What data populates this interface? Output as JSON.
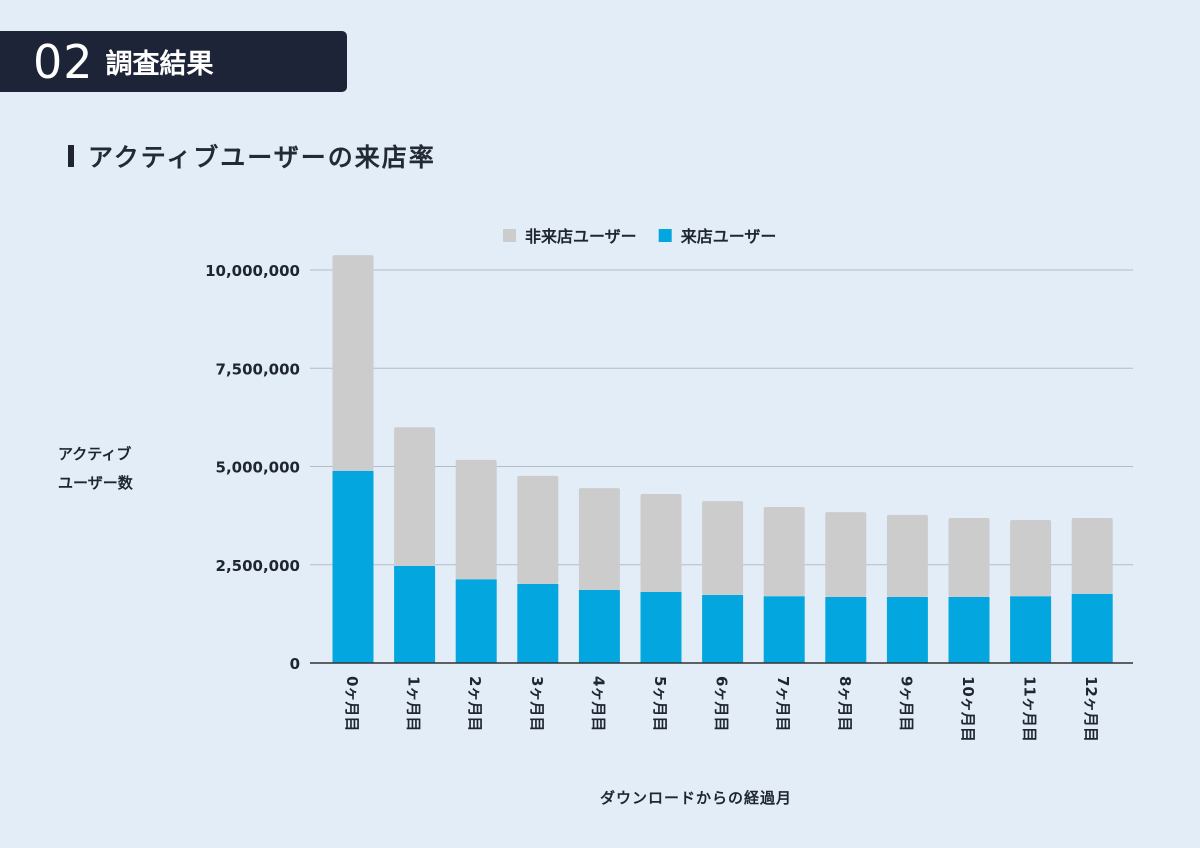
{
  "header": {
    "number": "02",
    "title": "調査結果"
  },
  "section_title": "アクティブユーザーの来店率",
  "chart_data": {
    "type": "bar",
    "stacked": true,
    "categories": [
      "0ヶ月目",
      "1ヶ月目",
      "2ヶ月目",
      "3ヶ月目",
      "4ヶ月目",
      "5ヶ月目",
      "6ヶ月目",
      "7ヶ月目",
      "8ヶ月目",
      "9ヶ月目",
      "10ヶ月目",
      "11ヶ月目",
      "12ヶ月目"
    ],
    "series": [
      {
        "name": "来店ユーザー",
        "color": "#03a6de",
        "values": [
          4890000,
          2470000,
          2130000,
          2010000,
          1860000,
          1810000,
          1730000,
          1700000,
          1680000,
          1680000,
          1680000,
          1700000,
          1760000
        ]
      },
      {
        "name": "非来店ユーザー",
        "color": "#cccccc",
        "values": [
          5490000,
          3530000,
          3040000,
          2750000,
          2590000,
          2490000,
          2390000,
          2270000,
          2160000,
          2090000,
          2010000,
          1940000,
          1930000
        ]
      }
    ],
    "legend_order": [
      "非来店ユーザー",
      "来店ユーザー"
    ],
    "legend_position": "top",
    "xlabel": "ダウンロードからの経過月",
    "ylabel": "アクティブ\nユーザー数",
    "ylim": [
      0,
      10000000
    ],
    "yticks": [
      "0",
      "2,500,000",
      "5,000,000",
      "7,500,000",
      "10,000,000"
    ],
    "ytick_values": [
      0,
      2500000,
      5000000,
      7500000,
      10000000
    ],
    "grid": true
  }
}
